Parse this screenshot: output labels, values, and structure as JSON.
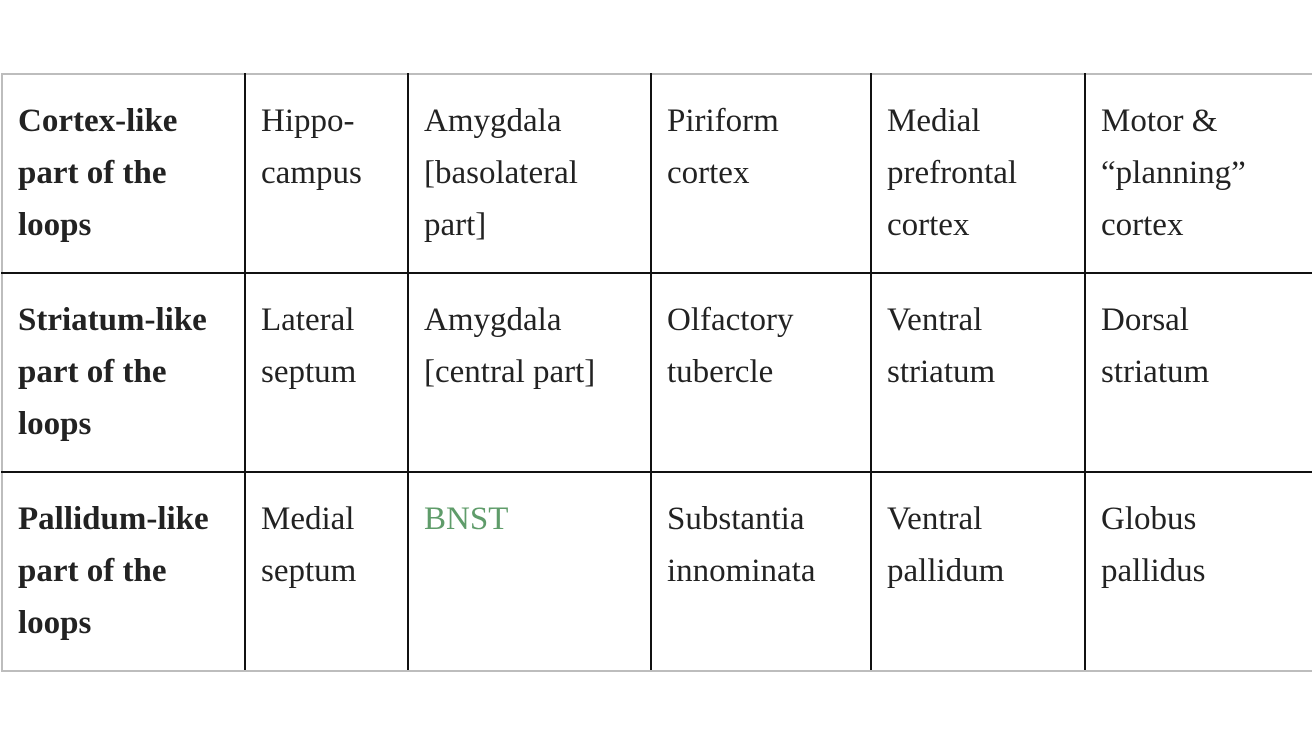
{
  "table": {
    "rows": [
      {
        "header": "Cortex-like part of the loops",
        "cells": [
          "Hippo-campus",
          "Amygdala [basolateral part]",
          "Piriform cortex",
          "Medial prefrontal cortex",
          "Motor & “planning” cortex"
        ]
      },
      {
        "header": "Striatum-like part of the loops",
        "cells": [
          "Lateral septum",
          "Amygdala [central part]",
          "Olfactory tubercle",
          "Ventral striatum",
          "Dorsal striatum"
        ]
      },
      {
        "header": "Pallidum-like part of the loops",
        "cells": [
          "Medial septum",
          "BNST",
          "Substantia innominata",
          "Ventral pallidum",
          "Globus pallidus"
        ]
      }
    ]
  },
  "colors": {
    "link": "#5f9c6a",
    "border": "#111111",
    "outer_border": "#bdbdbd",
    "text": "#222222"
  }
}
